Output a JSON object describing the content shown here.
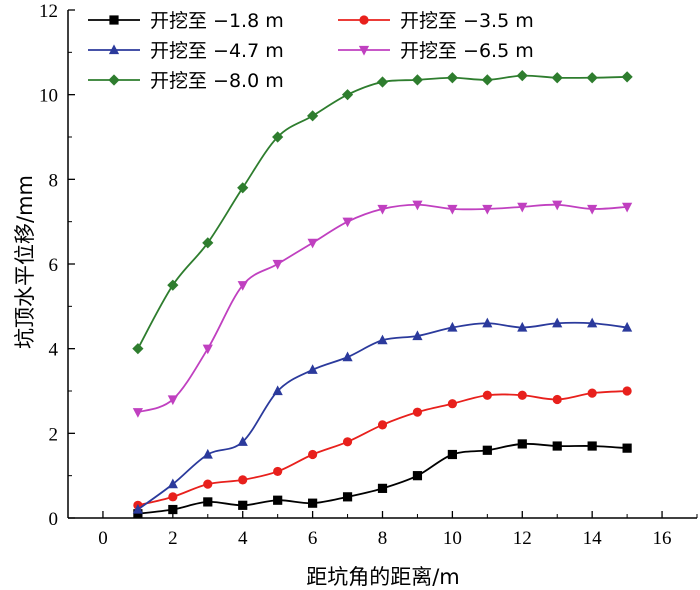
{
  "chart_data": {
    "type": "line",
    "title": "",
    "xlabel": "距坑角的距离/m",
    "ylabel": "坑顶水平位移/mm",
    "xlim": [
      -1,
      17
    ],
    "ylim": [
      0,
      12
    ],
    "xticks": [
      0,
      2,
      4,
      6,
      8,
      10,
      12,
      14,
      16
    ],
    "yticks": [
      0,
      2,
      4,
      6,
      8,
      10,
      12
    ],
    "grid": false,
    "legend_position": "top-left",
    "x": [
      1,
      2,
      3,
      4,
      5,
      6,
      7,
      8,
      9,
      10,
      11,
      12,
      13,
      14,
      15
    ],
    "series": [
      {
        "name": "开挖至 −1.8 m",
        "color": "#000000",
        "marker": "square",
        "values": [
          0.1,
          0.2,
          0.38,
          0.3,
          0.42,
          0.35,
          0.5,
          0.7,
          1.0,
          1.5,
          1.6,
          1.75,
          1.7,
          1.7,
          1.65
        ]
      },
      {
        "name": "开挖至 −3.5 m",
        "color": "#e8201c",
        "marker": "circle",
        "values": [
          0.3,
          0.5,
          0.8,
          0.9,
          1.1,
          1.5,
          1.8,
          2.2,
          2.5,
          2.7,
          2.9,
          2.9,
          2.8,
          2.95,
          3.0
        ]
      },
      {
        "name": "开挖至 −4.7 m",
        "color": "#2b3a9c",
        "marker": "triangle-up",
        "values": [
          0.2,
          0.8,
          1.5,
          1.8,
          3.0,
          3.5,
          3.8,
          4.2,
          4.3,
          4.5,
          4.6,
          4.5,
          4.6,
          4.6,
          4.5
        ]
      },
      {
        "name": "开挖至 −6.5 m",
        "color": "#c040c0",
        "marker": "triangle-down",
        "values": [
          2.5,
          2.8,
          4.0,
          5.5,
          6.0,
          6.5,
          7.0,
          7.3,
          7.4,
          7.3,
          7.3,
          7.35,
          7.4,
          7.3,
          7.35
        ]
      },
      {
        "name": "开挖至 −8.0 m",
        "color": "#2e7d2e",
        "marker": "diamond",
        "values": [
          4.0,
          5.5,
          6.5,
          7.8,
          9.0,
          9.5,
          10.0,
          10.3,
          10.35,
          10.4,
          10.35,
          10.45,
          10.4,
          10.4,
          10.42
        ]
      }
    ]
  }
}
